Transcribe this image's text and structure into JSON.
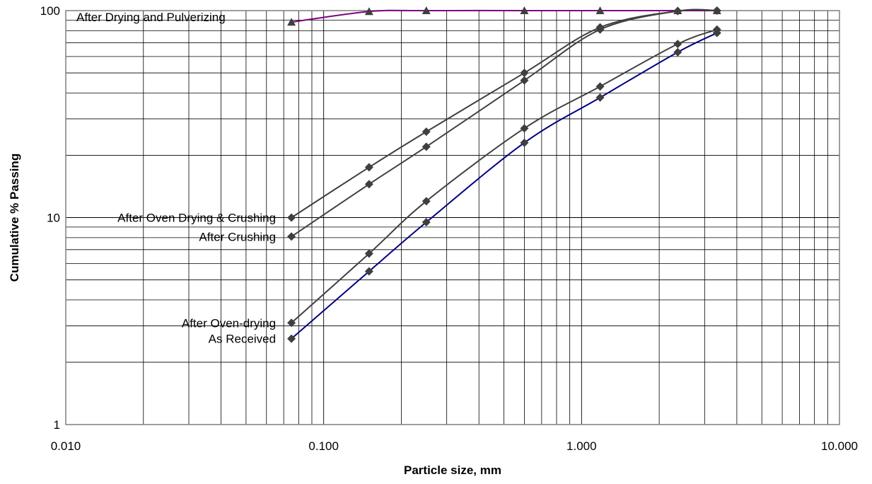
{
  "chart_data": {
    "type": "line",
    "title": "",
    "xlabel": "Particle size, mm",
    "ylabel": "Cumulative % Passing",
    "xscale": "log",
    "yscale": "log",
    "xlim": [
      0.01,
      10
    ],
    "ylim": [
      1,
      100
    ],
    "xticks": [
      "0.010",
      "0.100",
      "1.000",
      "10.000"
    ],
    "yticks": [
      "1",
      "10",
      "100"
    ],
    "grid": true,
    "legend": "none",
    "series": [
      {
        "name": "After Drying and Pulverizing",
        "color": "#800080",
        "marker": "triangle",
        "x": [
          0.075,
          0.15,
          0.25,
          0.6,
          1.18,
          2.36,
          3.35
        ],
        "y": [
          88,
          99,
          100,
          100,
          100,
          100,
          100
        ]
      },
      {
        "name": "After Oven Drying & Crushing",
        "color": "#404040",
        "marker": "diamond",
        "x": [
          0.075,
          0.15,
          0.25,
          0.6,
          1.18,
          2.36,
          3.35
        ],
        "y": [
          10,
          17.5,
          26,
          50,
          83,
          99.5,
          100
        ]
      },
      {
        "name": "After Crushing",
        "color": "#404040",
        "marker": "diamond",
        "x": [
          0.075,
          0.15,
          0.25,
          0.6,
          1.18,
          2.36,
          3.35
        ],
        "y": [
          8.1,
          14.5,
          22,
          46,
          81,
          99.5,
          100
        ]
      },
      {
        "name": "After Oven-drying",
        "color": "#404040",
        "marker": "diamond",
        "x": [
          0.075,
          0.15,
          0.25,
          0.6,
          1.18,
          2.36,
          3.35
        ],
        "y": [
          3.1,
          6.7,
          12,
          27,
          43,
          69,
          81
        ]
      },
      {
        "name": "As Received",
        "color": "#000080",
        "marker": "diamond",
        "x": [
          0.075,
          0.15,
          0.25,
          0.6,
          1.18,
          2.36,
          3.35
        ],
        "y": [
          2.6,
          5.5,
          9.5,
          23,
          38,
          63,
          78
        ]
      }
    ]
  }
}
